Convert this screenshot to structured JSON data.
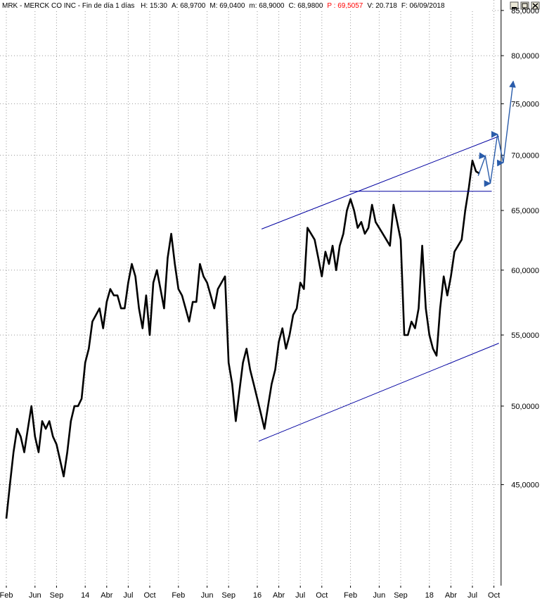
{
  "chart_data": {
    "type": "line",
    "title": "MRK - MERCK CO INC - Fin de día 1 días",
    "info": [
      {
        "text": "H: 15:30",
        "color": "#000000"
      },
      {
        "text": "A: 68,9700",
        "color": "#000000"
      },
      {
        "text": "M: 69,0400",
        "color": "#000000"
      },
      {
        "text": "m: 68,9000",
        "color": "#000000"
      },
      {
        "text": "C: 68,9800",
        "color": "#000000"
      },
      {
        "text": "P : 69,5057",
        "color": "#ff0000"
      },
      {
        "text": "V: 20.718",
        "color": "#000000"
      },
      {
        "text": "F: 06/09/2018",
        "color": "#000000"
      }
    ],
    "log_scale": true,
    "grid": true,
    "color": "#000000",
    "xlim": [
      -1,
      69
    ],
    "ylim": [
      39.3,
      86.2
    ],
    "xticks": [
      {
        "value": 0,
        "label": "Feb"
      },
      {
        "value": 4,
        "label": "Jun"
      },
      {
        "value": 7,
        "label": "Sep"
      },
      {
        "value": 11,
        "label": "14"
      },
      {
        "value": 14,
        "label": "Abr"
      },
      {
        "value": 17,
        "label": "Jul"
      },
      {
        "value": 20,
        "label": "Oct"
      },
      {
        "value": 24,
        "label": "Feb"
      },
      {
        "value": 28,
        "label": "Jun"
      },
      {
        "value": 31,
        "label": "Sep"
      },
      {
        "value": 35,
        "label": "16"
      },
      {
        "value": 38,
        "label": "Abr"
      },
      {
        "value": 41,
        "label": "Jul"
      },
      {
        "value": 44,
        "label": "Oct"
      },
      {
        "value": 48,
        "label": "Feb"
      },
      {
        "value": 52,
        "label": "Jun"
      },
      {
        "value": 55,
        "label": "Sep"
      },
      {
        "value": 59,
        "label": "18"
      },
      {
        "value": 62,
        "label": "Abr"
      },
      {
        "value": 65,
        "label": "Jul"
      },
      {
        "value": 68,
        "label": "Oct"
      }
    ],
    "yticks": [
      {
        "value": 45,
        "label": "45,0000"
      },
      {
        "value": 50,
        "label": "50,0000"
      },
      {
        "value": 55,
        "label": "55,0000"
      },
      {
        "value": 60,
        "label": "60,0000"
      },
      {
        "value": 65,
        "label": "65,0000"
      },
      {
        "value": 70,
        "label": "70,0000"
      },
      {
        "value": 75,
        "label": "75,0000"
      },
      {
        "value": 80,
        "label": "80,0000"
      },
      {
        "value": 85,
        "label": "85,0000"
      }
    ],
    "x": [
      0,
      0.5,
      1,
      1.5,
      2,
      2.5,
      3,
      3.5,
      4,
      4.5,
      5,
      5.5,
      6,
      6.5,
      7,
      7.5,
      8,
      8.5,
      9,
      9.5,
      10,
      10.5,
      11,
      11.5,
      12,
      12.5,
      13,
      13.5,
      14,
      14.5,
      15,
      15.5,
      16,
      16.5,
      17,
      17.5,
      18,
      18.5,
      19,
      19.5,
      20,
      20.5,
      21,
      21.5,
      22,
      22.5,
      23,
      23.5,
      24,
      24.5,
      25,
      25.5,
      26,
      26.5,
      27,
      27.5,
      28,
      28.5,
      29,
      29.5,
      30,
      30.5,
      31,
      31.5,
      32,
      32.5,
      33,
      33.5,
      34,
      34.5,
      35,
      35.5,
      36,
      36.5,
      37,
      37.5,
      38,
      38.5,
      39,
      39.5,
      40,
      40.5,
      41,
      41.5,
      42,
      42.5,
      43,
      43.5,
      44,
      44.5,
      45,
      45.5,
      46,
      46.5,
      47,
      47.5,
      48,
      48.5,
      49,
      49.5,
      50,
      50.5,
      51,
      51.5,
      52,
      52.5,
      53,
      53.5,
      54,
      54.5,
      55,
      55.5,
      56,
      56.5,
      57,
      57.5,
      58,
      58.5,
      59,
      59.5,
      60,
      60.5,
      61,
      61.5,
      62,
      62.5,
      63,
      63.5,
      64,
      64.5,
      65,
      65.5,
      66
    ],
    "values": [
      43,
      45,
      47,
      48.5,
      48,
      47,
      48.5,
      50,
      48,
      47,
      49,
      48.5,
      49,
      48,
      47.5,
      46.5,
      45.5,
      47,
      49,
      50,
      50,
      50.5,
      53,
      54,
      56,
      56.5,
      57,
      55.5,
      57.5,
      58.5,
      58,
      58,
      57,
      57,
      59,
      60.5,
      59.5,
      57,
      55.5,
      58,
      55,
      59,
      60,
      58.5,
      57,
      61,
      63,
      60.5,
      58.5,
      58,
      57,
      56,
      57.5,
      57.5,
      60.5,
      59.5,
      59,
      58,
      57,
      58.5,
      59,
      59.5,
      53,
      51.5,
      49,
      51,
      53,
      54,
      52.5,
      51.5,
      50.5,
      49.5,
      48.5,
      50,
      51.5,
      52.5,
      54.5,
      55.5,
      54,
      55,
      56.5,
      57,
      59,
      58.5,
      63.5,
      63,
      62.5,
      61,
      59.5,
      61.5,
      60.5,
      62,
      60,
      62,
      63,
      65,
      66,
      65,
      63.5,
      64,
      63,
      63.5,
      65.5,
      64,
      63.5,
      63,
      62.5,
      62,
      65.5,
      64,
      62.5,
      55,
      55,
      56,
      55.5,
      57,
      62,
      57,
      55,
      54,
      53.5,
      57,
      59.5,
      58,
      59.5,
      61.5,
      62,
      62.5,
      65,
      67,
      69.5,
      68.5,
      68.3
    ],
    "lines": [
      {
        "x": [
          35.6,
          68.7
        ],
        "values": [
          63.4,
          71.8
        ],
        "color": "#0000a0"
      },
      {
        "x": [
          35.2,
          68.7
        ],
        "values": [
          47.7,
          54.4
        ],
        "color": "#0000a0"
      },
      {
        "x": [
          47.9,
          67.7
        ],
        "values": [
          66.7,
          66.7
        ],
        "color": "#0000a0"
      }
    ],
    "projection": {
      "x": [
        65.8,
        66.8,
        67.5,
        68.5,
        69.3,
        70.7
      ],
      "values": [
        68.1,
        69.9,
        67.4,
        72.0,
        69.3,
        77.3
      ],
      "color": "#2a5caa"
    }
  }
}
